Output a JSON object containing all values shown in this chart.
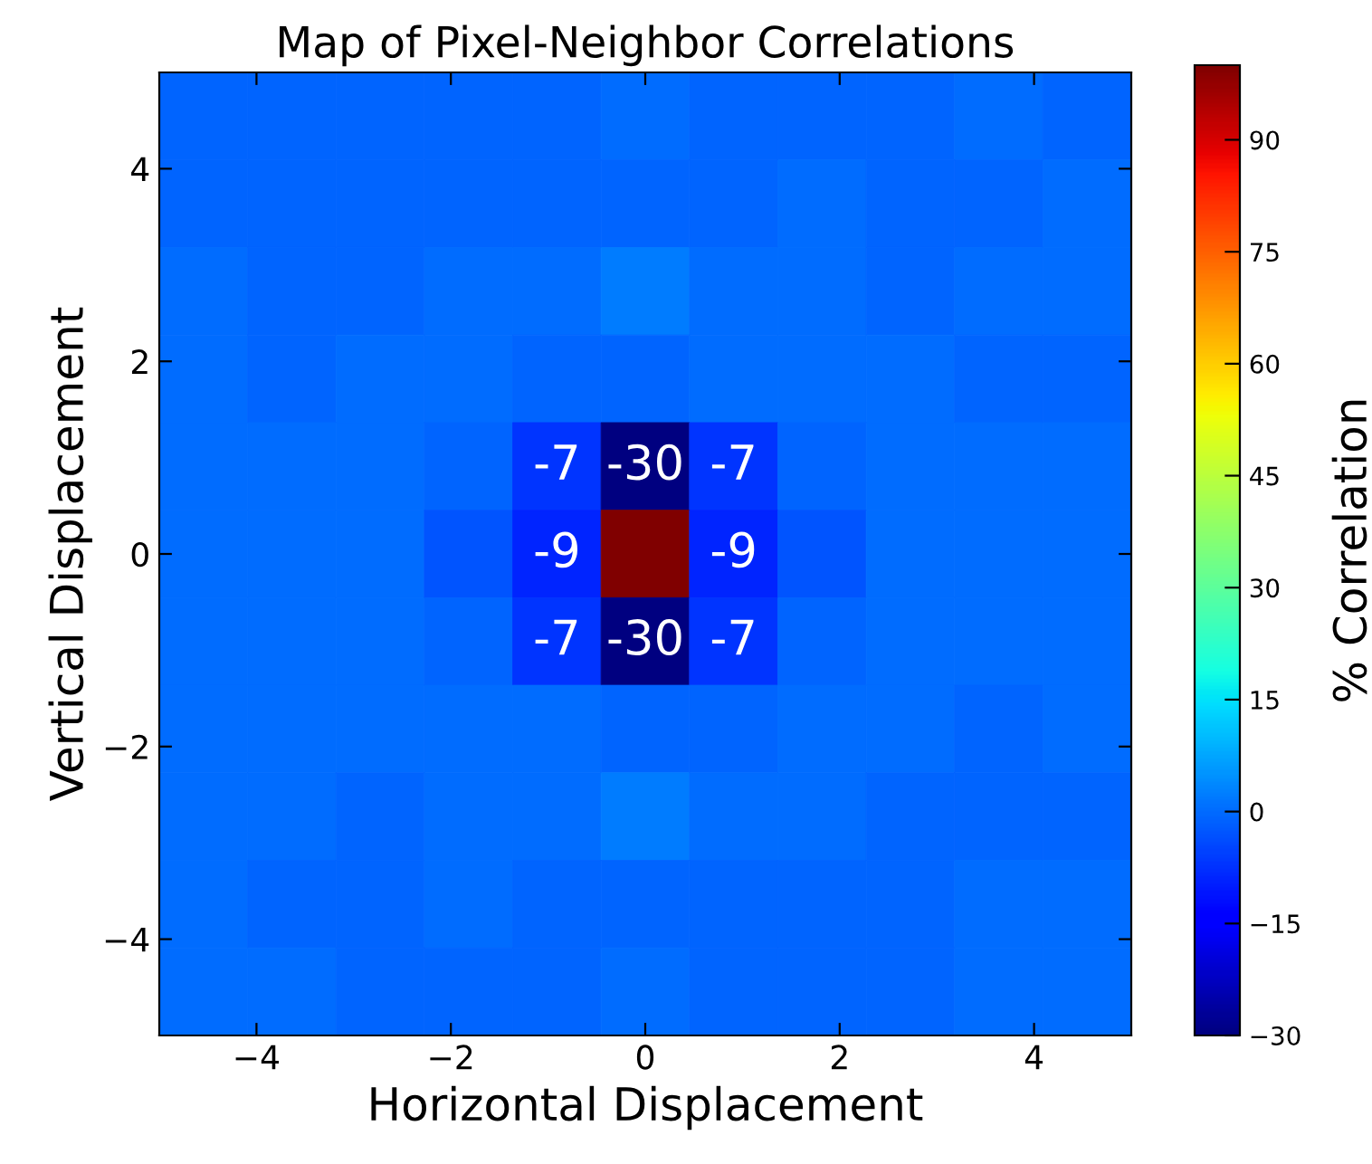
{
  "chart_data": {
    "type": "heatmap",
    "title": "Map of Pixel-Neighbor Correlations",
    "xlabel": "Horizontal Displacement",
    "ylabel": "Vertical Displacement",
    "clabel": "% Correlation",
    "xlim": [
      -5,
      5
    ],
    "ylim": [
      -5,
      5
    ],
    "xticks": [
      {
        "value": -4,
        "label": "−4"
      },
      {
        "value": -2,
        "label": "−2"
      },
      0,
      2,
      4
    ],
    "yticks": [
      {
        "value": -4,
        "label": "−4"
      },
      {
        "value": -2,
        "label": "−2"
      },
      0,
      2,
      4
    ],
    "clim": [
      -30,
      100
    ],
    "cticks": [
      {
        "value": -30,
        "label": "−30"
      },
      {
        "value": -15,
        "label": "−15"
      },
      0,
      15,
      30,
      45,
      60,
      75,
      90
    ],
    "cells": [
      [
        -1,
        -1,
        -1,
        -1,
        -1,
        0,
        -1,
        -1,
        -1,
        0,
        -1
      ],
      [
        -1,
        -1,
        -1,
        -1,
        -1,
        -1,
        -1,
        0,
        -1,
        -1,
        0
      ],
      [
        0,
        -1,
        -1,
        0,
        0,
        2,
        0,
        0,
        -1,
        0,
        0
      ],
      [
        0,
        -1,
        0,
        0,
        -1,
        -1,
        0,
        0,
        0,
        -1,
        -1
      ],
      [
        0,
        0,
        0,
        -1,
        -7,
        -30,
        -7,
        -1,
        0,
        0,
        0
      ],
      [
        0,
        0,
        0,
        -3,
        -9,
        100,
        -9,
        -3,
        0,
        0,
        0
      ],
      [
        0,
        0,
        0,
        -1,
        -7,
        -30,
        -7,
        -1,
        0,
        0,
        0
      ],
      [
        0,
        0,
        0,
        0,
        0,
        -1,
        -1,
        0,
        0,
        -1,
        0
      ],
      [
        0,
        0,
        -1,
        0,
        0,
        2,
        0,
        0,
        -1,
        -1,
        -1
      ],
      [
        0,
        -1,
        -1,
        0,
        -1,
        -1,
        -1,
        -1,
        -1,
        0,
        0
      ],
      [
        0,
        0,
        -1,
        -1,
        -1,
        0,
        -1,
        -1,
        -1,
        0,
        0
      ]
    ],
    "cell_labels": [
      [
        null,
        null,
        null,
        null,
        null,
        null,
        null,
        null,
        null,
        null,
        null
      ],
      [
        null,
        null,
        null,
        null,
        null,
        null,
        null,
        null,
        null,
        null,
        null
      ],
      [
        null,
        null,
        null,
        null,
        null,
        null,
        null,
        null,
        null,
        null,
        null
      ],
      [
        null,
        null,
        null,
        null,
        null,
        null,
        null,
        null,
        null,
        null,
        null
      ],
      [
        null,
        null,
        null,
        null,
        "-7",
        "-30",
        "-7",
        null,
        null,
        null,
        null
      ],
      [
        null,
        null,
        null,
        null,
        "-9",
        null,
        "-9",
        null,
        null,
        null,
        null
      ],
      [
        null,
        null,
        null,
        null,
        "-7",
        "-30",
        "-7",
        null,
        null,
        null,
        null
      ],
      [
        null,
        null,
        null,
        null,
        null,
        null,
        null,
        null,
        null,
        null,
        null
      ],
      [
        null,
        null,
        null,
        null,
        null,
        null,
        null,
        null,
        null,
        null,
        null
      ],
      [
        null,
        null,
        null,
        null,
        null,
        null,
        null,
        null,
        null,
        null,
        null
      ],
      [
        null,
        null,
        null,
        null,
        null,
        null,
        null,
        null,
        null,
        null,
        null
      ]
    ],
    "grid": false
  }
}
